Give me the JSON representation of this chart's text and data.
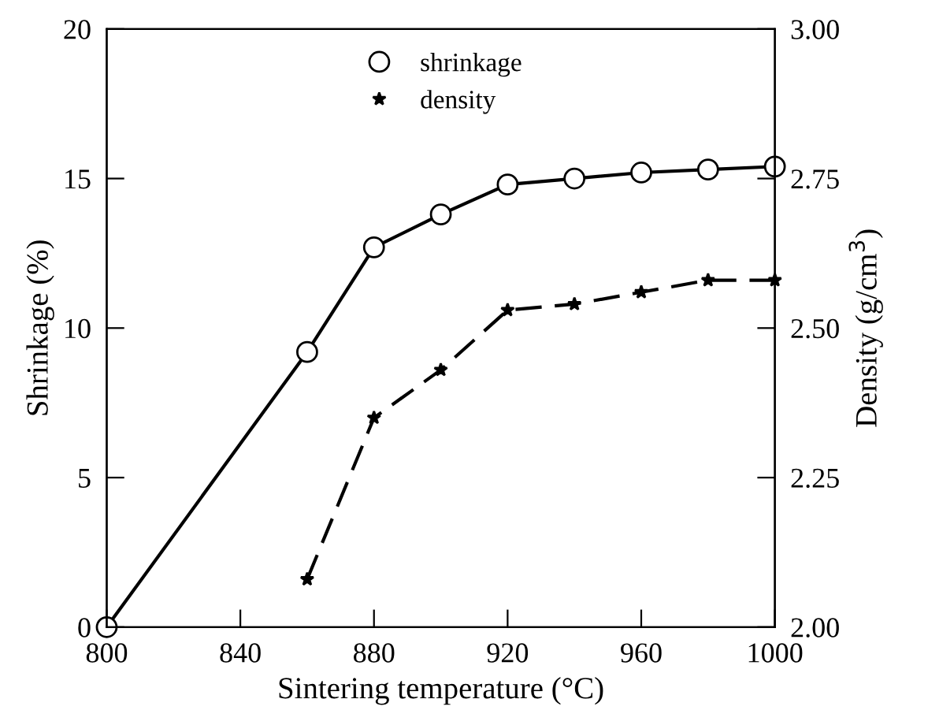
{
  "chart_data": {
    "type": "line",
    "xlabel": "Sintering temperature (°C)",
    "ylabel": "Shrinkage (%)",
    "y2label": "Density (g/cm$^{3}$)",
    "xlim": [
      800,
      1000
    ],
    "xticks": [
      800,
      840,
      880,
      920,
      960,
      1000
    ],
    "ylim": [
      0,
      20
    ],
    "yticks": [
      0,
      5,
      10,
      15,
      20
    ],
    "y2lim": [
      2.0,
      3.0
    ],
    "y2ticks": [
      {
        "value": 2.0,
        "label": "2.00"
      },
      {
        "value": 2.25,
        "label": "2.25"
      },
      {
        "value": 2.5,
        "label": "2.50"
      },
      {
        "value": 2.75,
        "label": "2.75"
      },
      {
        "value": 3.0,
        "label": "3.00"
      }
    ],
    "legend": "top",
    "grid": false,
    "series": [
      {
        "name": "shrinkage",
        "color": "#000000",
        "marker": "circle",
        "line_style": "solid",
        "x": [
          800,
          860,
          880,
          900,
          920,
          940,
          960,
          980,
          1000
        ],
        "values": [
          0,
          9.2,
          12.7,
          13.8,
          14.8,
          15.0,
          15.2,
          15.3,
          15.4
        ]
      },
      {
        "name": "density",
        "color": "#000000",
        "marker": "star",
        "line_style": "dashed",
        "axis": "y2",
        "x": [
          860,
          880,
          900,
          920,
          940,
          960,
          980,
          1000
        ],
        "values": [
          2.08,
          2.35,
          2.43,
          2.53,
          2.54,
          2.56,
          2.58,
          2.58
        ]
      }
    ]
  }
}
